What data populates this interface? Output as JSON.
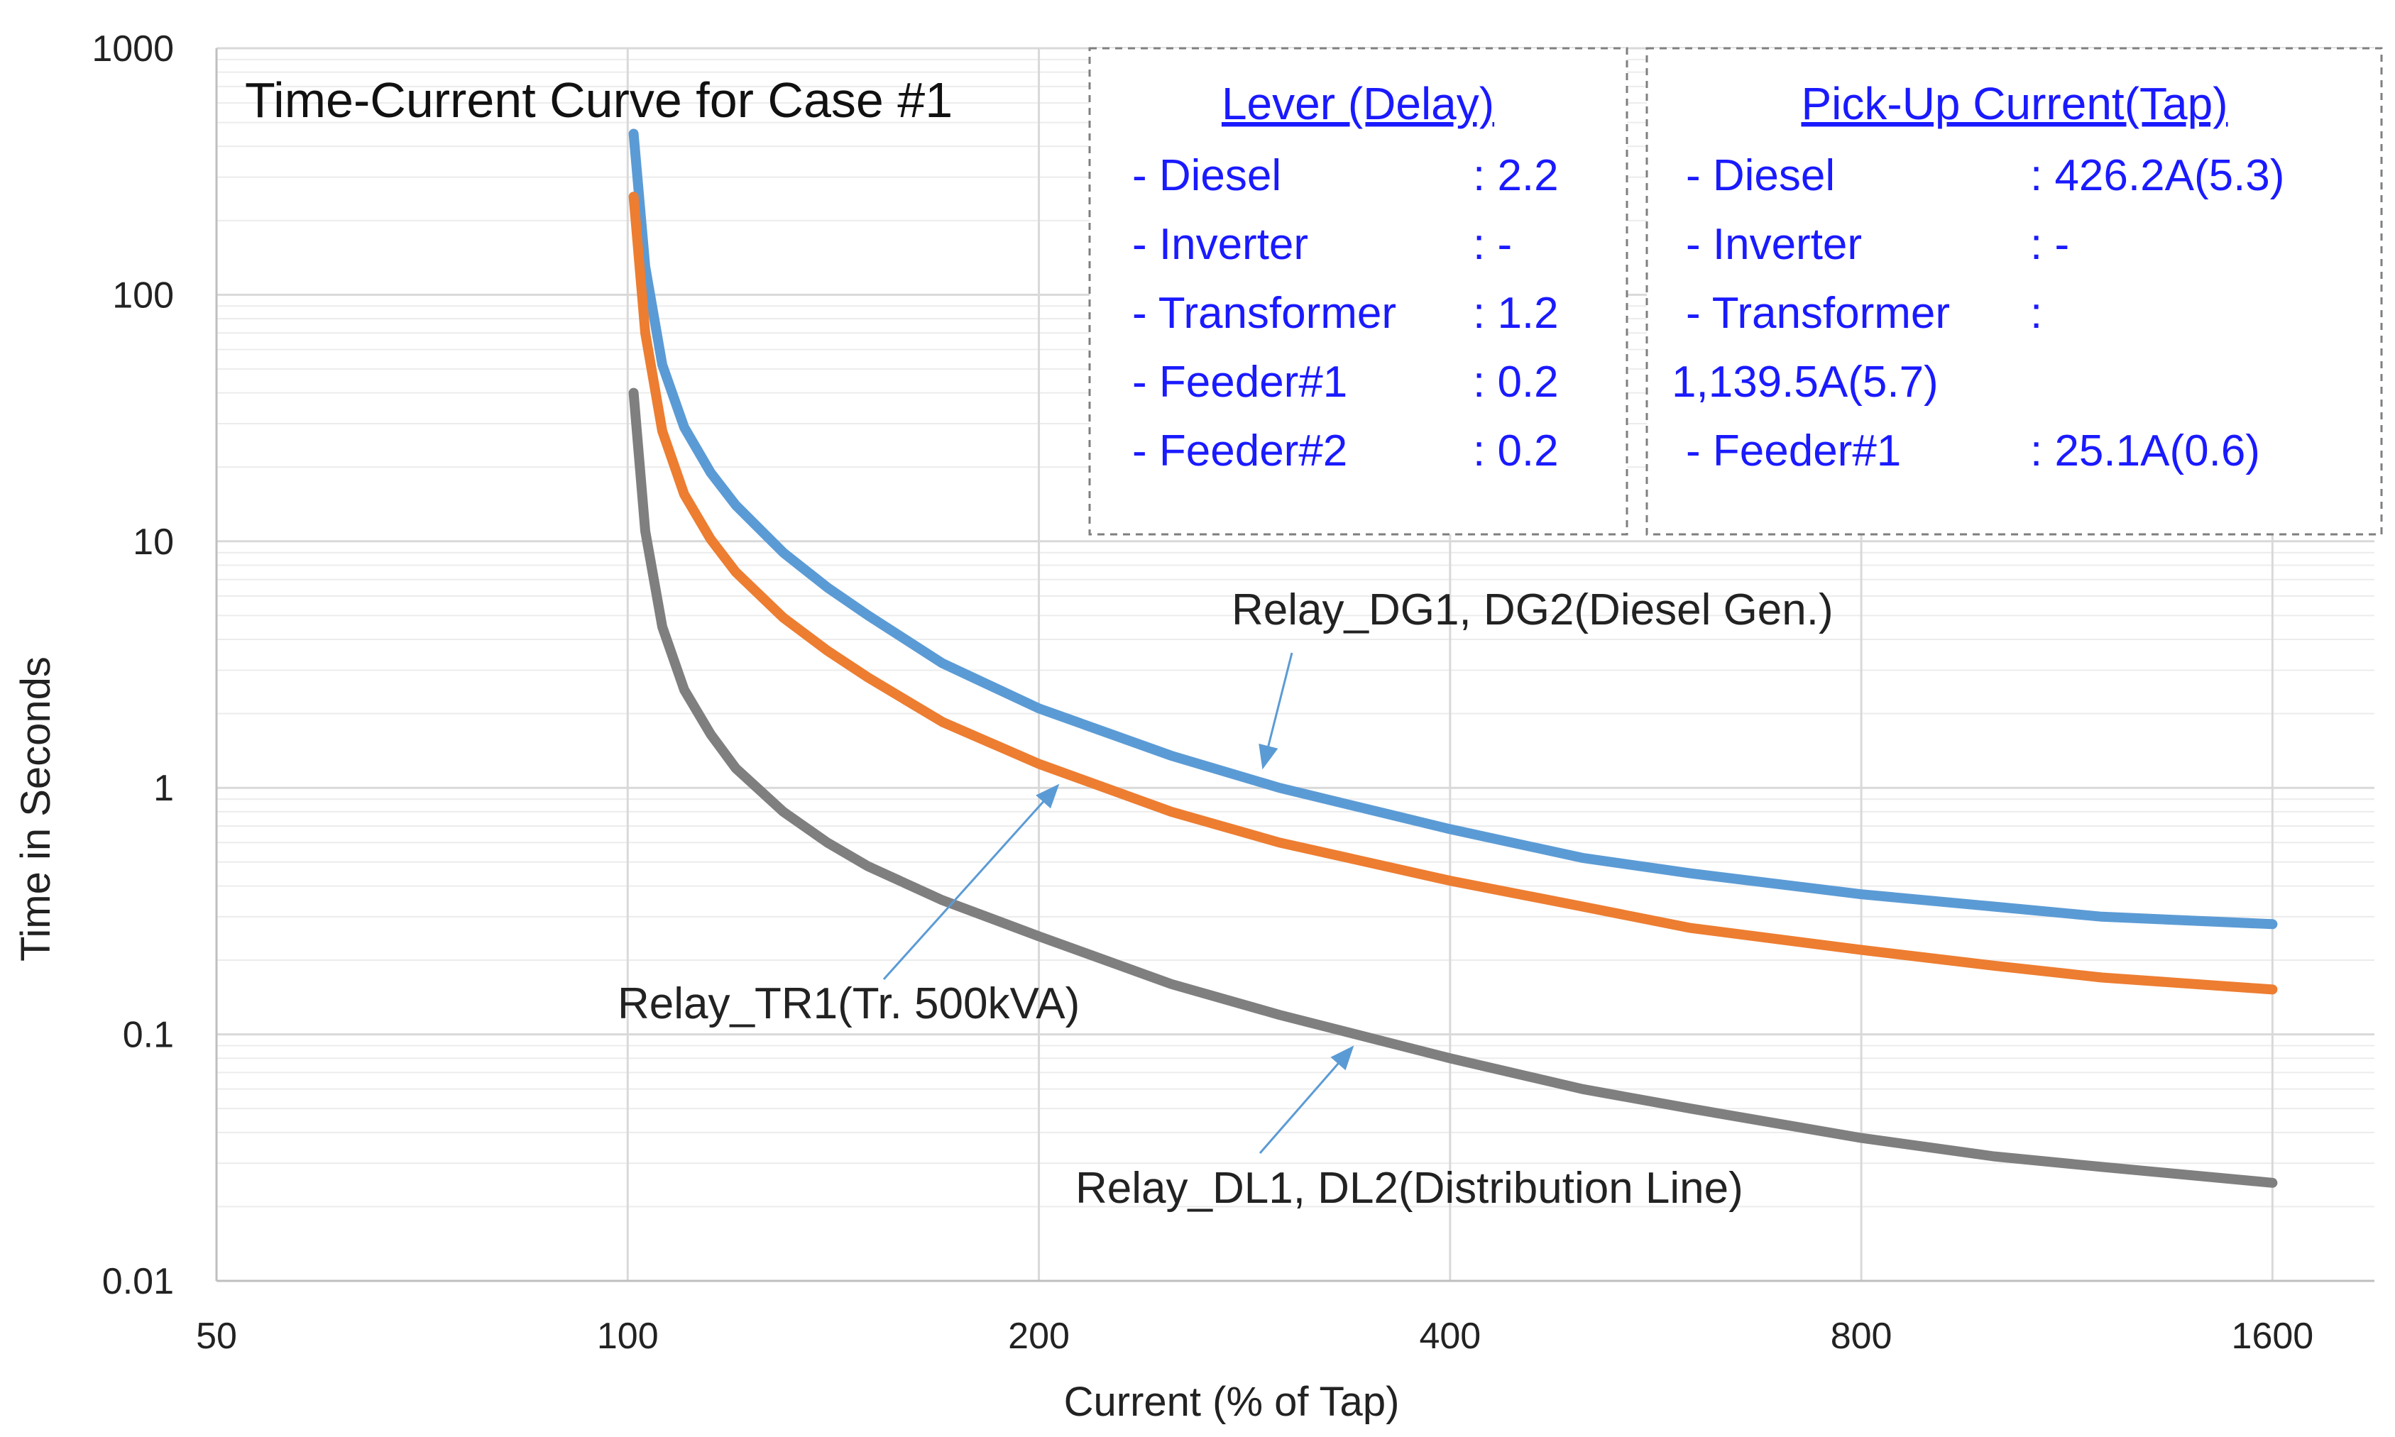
{
  "chart_data": {
    "type": "line",
    "title": "Time-Current Curve for Case #1",
    "xlabel": "Current (% of Tap)",
    "ylabel": "Time in Seconds",
    "xscale": "log",
    "yscale": "log",
    "xlim": [
      50,
      1900
    ],
    "ylim": [
      0.01,
      1000
    ],
    "xticks": [
      50,
      100,
      200,
      400,
      800,
      1600
    ],
    "xtick_labels": [
      "50",
      "100",
      "200",
      "400",
      "800",
      "1600"
    ],
    "yticks": [
      0.01,
      0.1,
      1,
      10,
      100,
      1000
    ],
    "ytick_labels": [
      "0.01",
      "0.1",
      "1",
      "10",
      "100",
      "1000"
    ],
    "grid": true,
    "series": [
      {
        "name": "Relay_DG1, DG2(Diesel Gen.)",
        "color": "#5b9bd5",
        "x": [
          101,
          103,
          106,
          110,
          115,
          120,
          130,
          140,
          150,
          170,
          200,
          250,
          300,
          400,
          500,
          600,
          800,
          1000,
          1200,
          1600
        ],
        "y": [
          450,
          130,
          52,
          29,
          19,
          14,
          9,
          6.5,
          5,
          3.2,
          2.1,
          1.35,
          1.0,
          0.68,
          0.52,
          0.45,
          0.37,
          0.33,
          0.3,
          0.28
        ]
      },
      {
        "name": "Relay_TR1(Tr. 500kVA)",
        "color": "#ed7d31",
        "x": [
          101,
          103,
          106,
          110,
          115,
          120,
          130,
          140,
          150,
          170,
          200,
          250,
          300,
          400,
          500,
          600,
          800,
          1000,
          1200,
          1600
        ],
        "y": [
          250,
          70,
          28,
          15.5,
          10.2,
          7.5,
          4.9,
          3.6,
          2.8,
          1.85,
          1.25,
          0.8,
          0.6,
          0.42,
          0.33,
          0.27,
          0.22,
          0.19,
          0.17,
          0.152
        ]
      },
      {
        "name": "Relay_DL1, DL2(Distribution Line)",
        "color": "#7f7f7f",
        "x": [
          101,
          103,
          106,
          110,
          115,
          120,
          130,
          140,
          150,
          170,
          200,
          250,
          300,
          400,
          500,
          600,
          800,
          1000,
          1200,
          1600
        ],
        "y": [
          40,
          11,
          4.5,
          2.5,
          1.65,
          1.2,
          0.8,
          0.6,
          0.48,
          0.35,
          0.25,
          0.16,
          0.12,
          0.08,
          0.06,
          0.05,
          0.038,
          0.032,
          0.029,
          0.025
        ]
      }
    ],
    "annotations": [
      {
        "text": "Relay_DG1, DG2(Diesel Gen.)",
        "series": 0
      },
      {
        "text": "Relay_TR1(Tr. 500kVA)",
        "series": 1
      },
      {
        "text": "Relay_DL1, DL2(Distribution Line)",
        "series": 2
      }
    ],
    "legend_boxes": [
      {
        "heading": "Lever (Delay)",
        "lines": [
          [
            "- Diesel",
            ": 2.2"
          ],
          [
            "- Inverter",
            ": -"
          ],
          [
            "- Transformer",
            ": 1.2"
          ],
          [
            "- Feeder#1",
            ": 0.2"
          ],
          [
            "- Feeder#2",
            ": 0.2"
          ]
        ]
      },
      {
        "heading": "Pick-Up Current(Tap)",
        "lines": [
          [
            "- Diesel",
            ": 426.2A(5.3)"
          ],
          [
            "- Inverter",
            ": -"
          ],
          [
            "- Transformer",
            ":"
          ],
          [
            "1,139.5A(5.7)",
            ""
          ],
          [
            "- Feeder#1",
            ": 25.1A(0.6)"
          ]
        ]
      }
    ],
    "colors": {
      "grid": "#d9d9d9",
      "axis": "#bfbfbf",
      "box_border": "#7f7f7f",
      "box_text": "#1a1aff",
      "arrow": "#5b9bd5"
    }
  }
}
